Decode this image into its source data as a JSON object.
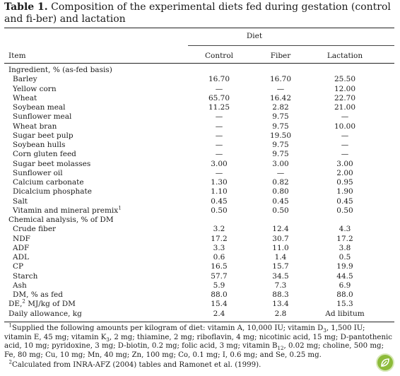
{
  "caption": {
    "label": "Table 1.",
    "text": "Composition of the experimental diets fed during gestation (control and fi-ber) and lactation"
  },
  "header": {
    "group_label": "Diet",
    "item_label": "Item",
    "columns": [
      "Control",
      "Fiber",
      "Lactation"
    ]
  },
  "rows": [
    {
      "label": "Ingredient, % (as-fed basis)",
      "indent": 0,
      "values": [
        "",
        "",
        ""
      ]
    },
    {
      "label": "Barley",
      "indent": 1,
      "values": [
        "16.70",
        "16.70",
        "25.50"
      ]
    },
    {
      "label": "Yellow corn",
      "indent": 1,
      "values": [
        "—",
        "—",
        "12.00"
      ]
    },
    {
      "label": "Wheat",
      "indent": 1,
      "values": [
        "65.70",
        "16.42",
        "22.70"
      ]
    },
    {
      "label": "Soybean meal",
      "indent": 1,
      "values": [
        "11.25",
        "2.82",
        "21.00"
      ]
    },
    {
      "label": "Sunflower meal",
      "indent": 1,
      "values": [
        "—",
        "9.75",
        "—"
      ]
    },
    {
      "label": "Wheat bran",
      "indent": 1,
      "values": [
        "—",
        "9.75",
        "10.00"
      ]
    },
    {
      "label": "Sugar beet pulp",
      "indent": 1,
      "values": [
        "—",
        "19.50",
        "—"
      ]
    },
    {
      "label": "Soybean hulls",
      "indent": 1,
      "values": [
        "—",
        "9.75",
        "—"
      ]
    },
    {
      "label": "Corn gluten feed",
      "indent": 1,
      "values": [
        "—",
        "9.75",
        "—"
      ]
    },
    {
      "label": "Sugar beet molasses",
      "indent": 1,
      "values": [
        "3.00",
        "3.00",
        "3.00"
      ]
    },
    {
      "label": "Sunflower oil",
      "indent": 1,
      "values": [
        "—",
        "—",
        "2.00"
      ]
    },
    {
      "label": "Calcium carbonate",
      "indent": 1,
      "values": [
        "1.30",
        "0.82",
        "0.95"
      ]
    },
    {
      "label": "Dicalcium phosphate",
      "indent": 1,
      "values": [
        "1.10",
        "0.80",
        "1.90"
      ]
    },
    {
      "label": "Salt",
      "indent": 1,
      "values": [
        "0.45",
        "0.45",
        "0.45"
      ]
    },
    {
      "label": "Vitamin and mineral premix",
      "sup": "1",
      "indent": 1,
      "values": [
        "0.50",
        "0.50",
        "0.50"
      ]
    },
    {
      "label": "Chemical analysis, % of DM",
      "indent": 0,
      "values": [
        "",
        "",
        ""
      ]
    },
    {
      "label": "Crude fiber",
      "indent": 1,
      "values": [
        "3.2",
        "12.4",
        "4.3"
      ]
    },
    {
      "label": "NDF",
      "indent": 1,
      "values": [
        "17.2",
        "30.7",
        "17.2"
      ]
    },
    {
      "label": "ADF",
      "indent": 1,
      "values": [
        "3.3",
        "11.0",
        "3.8"
      ]
    },
    {
      "label": "ADL",
      "indent": 1,
      "values": [
        "0.6",
        "1.4",
        "0.5"
      ]
    },
    {
      "label": "CP",
      "indent": 1,
      "values": [
        "16.5",
        "15.7",
        "19.9"
      ]
    },
    {
      "label": "Starch",
      "indent": 1,
      "values": [
        "57.7",
        "34.5",
        "44.5"
      ]
    },
    {
      "label": "Ash",
      "indent": 1,
      "values": [
        "5.9",
        "7.3",
        "6.9"
      ]
    },
    {
      "label": "DM, % as fed",
      "indent": 1,
      "values": [
        "88.0",
        "88.3",
        "88.0"
      ]
    },
    {
      "label": "DE,",
      "sup": "2",
      "label_after": " MJ/kg of DM",
      "indent": 0,
      "values": [
        "15.4",
        "13.4",
        "15.3"
      ]
    },
    {
      "label": "Daily allowance, kg",
      "indent": 0,
      "values": [
        "2.4",
        "2.8",
        "Ad libitum"
      ]
    }
  ],
  "footnotes": {
    "note1_marker": "1",
    "note1_a": "Supplied the following amounts per kilogram of diet: vitamin A, 10,000 IU; vitamin D",
    "note1_sub_d": "3",
    "note1_b": ", 1,500 IU; vitamin E, 45 mg; vitamin K",
    "note1_sub_k": "3",
    "note1_c": ", 2 mg; thiamine, 2 mg; riboflavin, 4 mg; nicotinic acid, 15 mg; D-pantothenic acid, 10 mg; pyridoxine, 3 mg; D-biotin, 0.2 mg; folic acid, 3 mg; vitamin B",
    "note1_sub_b": "12",
    "note1_d": ", 0.02 mg; choline, 500 mg; Fe, 80 mg; Cu, 10 mg; Mn, 40 mg; Zn, 100 mg; Co, 0.1 mg; I, 0.6 mg; and Se, 0.25 mg.",
    "note2_marker": "2",
    "note2": "Calculated from INRA-AFZ (2004) tables and Ramonet et al. (1999)."
  },
  "logo_icon": "leaf-badge-icon",
  "colors": {
    "text": "#1a1a1a",
    "rule": "#222222",
    "logo": "#8dbb3a"
  }
}
